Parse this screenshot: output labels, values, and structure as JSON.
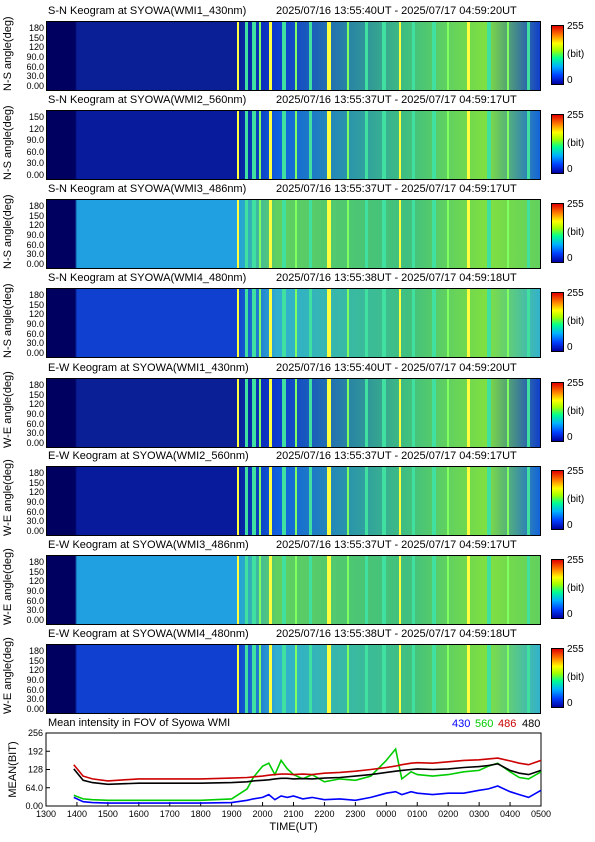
{
  "panels": [
    {
      "title": "S-N Keogram at SYOWA(WMI1_430nm)",
      "time": "2025/07/16 13:55:40UT  - 2025/07/17 04:59:20UT",
      "ylabel": "N-S angle(deg)",
      "ticks": [
        "180",
        "150",
        "120",
        "90.0",
        "60.0",
        "30.0",
        "0.00"
      ],
      "colors": {
        "bg": "#0a1e96",
        "mid": "#0d3ad0"
      }
    },
    {
      "title": "S-N Keogram at SYOWA(WMI2_560nm)",
      "time": "2025/07/16 13:55:37UT  - 2025/07/17 04:59:17UT",
      "ylabel": "N-S angle(deg)",
      "ticks": [
        "150",
        "120",
        "90.0",
        "60.0",
        "30.0",
        "0.00"
      ],
      "colors": {
        "bg": "#071b9c",
        "mid": "#1060e0"
      }
    },
    {
      "title": "S-N Keogram at SYOWA(WMI3_486nm)",
      "time": "2025/07/16 13:55:37UT  - 2025/07/17 04:59:17UT",
      "ylabel": "N-S angle(deg)",
      "ticks": [
        "180",
        "150",
        "120",
        "90.0",
        "60.0",
        "30.0",
        "0.00"
      ],
      "colors": {
        "bg": "#20a0e0",
        "mid": "#60d060"
      }
    },
    {
      "title": "S-N Keogram at SYOWA(WMI4_480nm)",
      "time": "2025/07/16 13:55:38UT  - 2025/07/17 04:59:18UT",
      "ylabel": "N-S angle(deg)",
      "ticks": [
        "180",
        "150",
        "120",
        "90.0",
        "60.0",
        "30.0",
        "0.00"
      ],
      "colors": {
        "bg": "#1040d0",
        "mid": "#30b0d0"
      }
    },
    {
      "title": "E-W Keogram at SYOWA(WMI1_430nm)",
      "time": "2025/07/16 13:55:40UT  - 2025/07/17 04:59:20UT",
      "ylabel": "W-E angle(deg)",
      "ticks": [
        "180",
        "150",
        "120",
        "90.0",
        "60.0",
        "30.0",
        "0.00"
      ],
      "colors": {
        "bg": "#0a1e96",
        "mid": "#0d3ad0"
      }
    },
    {
      "title": "E-W Keogram at SYOWA(WMI2_560nm)",
      "time": "2025/07/16 13:55:37UT  - 2025/07/17 04:59:17UT",
      "ylabel": "W-E angle(deg)",
      "ticks": [
        "180",
        "150",
        "120",
        "90.0",
        "60.0",
        "30.0",
        "0.00"
      ],
      "colors": {
        "bg": "#071b9c",
        "mid": "#1060e0"
      }
    },
    {
      "title": "E-W Keogram at SYOWA(WMI3_486nm)",
      "time": "2025/07/16 13:55:37UT  - 2025/07/17 04:59:17UT",
      "ylabel": "W-E angle(deg)",
      "ticks": [
        "180",
        "150",
        "120",
        "90.0",
        "60.0",
        "30.0",
        "0.00"
      ],
      "colors": {
        "bg": "#20a0e0",
        "mid": "#60d060"
      }
    },
    {
      "title": "E-W Keogram at SYOWA(WMI4_480nm)",
      "time": "2025/07/16 13:55:38UT  - 2025/07/17 04:59:18UT",
      "ylabel": "W-E angle(deg)",
      "ticks": [
        "180",
        "150",
        "120",
        "90.0",
        "60.0",
        "30.0",
        "0.00"
      ],
      "colors": {
        "bg": "#1040d0",
        "mid": "#30b0d0"
      }
    }
  ],
  "colorbar": {
    "max": "255",
    "unit": "(bit)",
    "min": "0"
  },
  "chart_data": {
    "type": "line",
    "title": "Mean intensity in FOV of Syowa WMI",
    "xlabel": "TIME(UT)",
    "ylabel": "MEAN(BIT)",
    "x_ticks": [
      "1300",
      "1400",
      "1500",
      "1600",
      "1700",
      "1800",
      "1900",
      "2000",
      "2100",
      "2200",
      "2300",
      "0000",
      "0100",
      "0200",
      "0300",
      "0400",
      "0500"
    ],
    "y_ticks": [
      "256",
      "192",
      "128",
      "64.0",
      "0.00"
    ],
    "ylim": [
      0,
      256
    ],
    "x": [
      13.9,
      14.2,
      14.5,
      15,
      16,
      17,
      18,
      19,
      19.5,
      19.7,
      20,
      20.2,
      20.4,
      20.6,
      20.8,
      21,
      21.3,
      21.6,
      22,
      22.5,
      23,
      23.5,
      24,
      24.3,
      24.5,
      24.8,
      25,
      25.5,
      26,
      26.5,
      27,
      27.3,
      27.6,
      28,
      28.3,
      28.6,
      29
    ],
    "series": [
      {
        "name": "430",
        "color": "#0000ff",
        "values": [
          30,
          15,
          12,
          10,
          10,
          10,
          10,
          12,
          20,
          25,
          30,
          40,
          22,
          35,
          30,
          35,
          25,
          30,
          22,
          25,
          20,
          30,
          45,
          50,
          40,
          50,
          45,
          40,
          45,
          45,
          55,
          60,
          70,
          50,
          40,
          30,
          55
        ]
      },
      {
        "name": "560",
        "color": "#00cc00",
        "values": [
          38,
          25,
          22,
          20,
          20,
          20,
          20,
          25,
          60,
          100,
          140,
          150,
          110,
          160,
          130,
          110,
          95,
          110,
          85,
          95,
          90,
          105,
          160,
          200,
          95,
          120,
          110,
          105,
          110,
          120,
          125,
          140,
          150,
          120,
          100,
          95,
          120
        ]
      },
      {
        "name": "486",
        "color": "#cc0000",
        "values": [
          145,
          105,
          95,
          88,
          95,
          95,
          95,
          98,
          100,
          102,
          105,
          108,
          110,
          112,
          112,
          110,
          112,
          110,
          115,
          118,
          122,
          128,
          135,
          140,
          145,
          150,
          152,
          150,
          155,
          160,
          162,
          165,
          168,
          158,
          150,
          145,
          160
        ]
      },
      {
        "name": "480",
        "color": "#000000",
        "values": [
          130,
          90,
          82,
          76,
          80,
          80,
          80,
          82,
          85,
          88,
          90,
          92,
          95,
          97,
          97,
          95,
          96,
          95,
          98,
          100,
          105,
          110,
          118,
          122,
          125,
          128,
          130,
          128,
          130,
          135,
          138,
          142,
          148,
          125,
          115,
          110,
          125
        ]
      }
    ]
  }
}
